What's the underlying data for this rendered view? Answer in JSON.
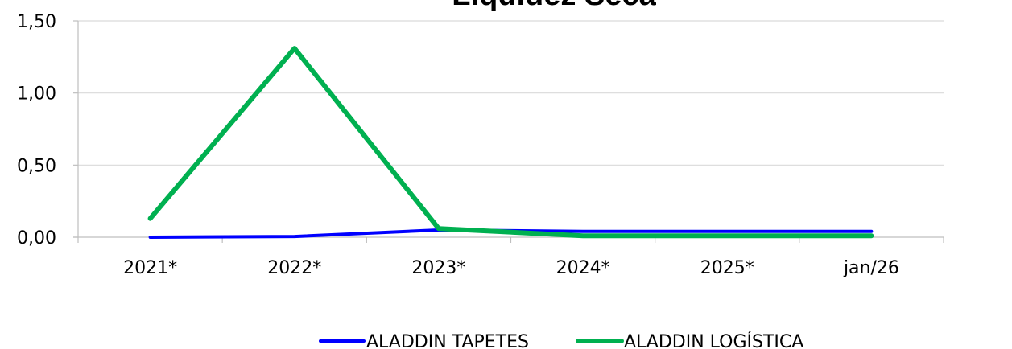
{
  "chart_data": {
    "type": "line",
    "title": "Liquidez Seca",
    "categories": [
      "2021*",
      "2022*",
      "2023*",
      "2024*",
      "2025*",
      "jan/26"
    ],
    "ylim": [
      0,
      1.5
    ],
    "yticks": [
      "0,00",
      "0,50",
      "1,00",
      "1,50"
    ],
    "ytick_values": [
      0,
      0.5,
      1.0,
      1.5
    ],
    "grid": true,
    "legend": "bottom",
    "series": [
      {
        "name": "ALADDIN TAPETES",
        "color": "#0000FF",
        "values": [
          0.0,
          0.005,
          0.05,
          0.04,
          0.04,
          0.04
        ]
      },
      {
        "name": "ALADDIN LOGÍSTICA",
        "color": "#00B050",
        "values": [
          0.13,
          1.31,
          0.06,
          0.01,
          0.01,
          0.01
        ]
      }
    ]
  }
}
